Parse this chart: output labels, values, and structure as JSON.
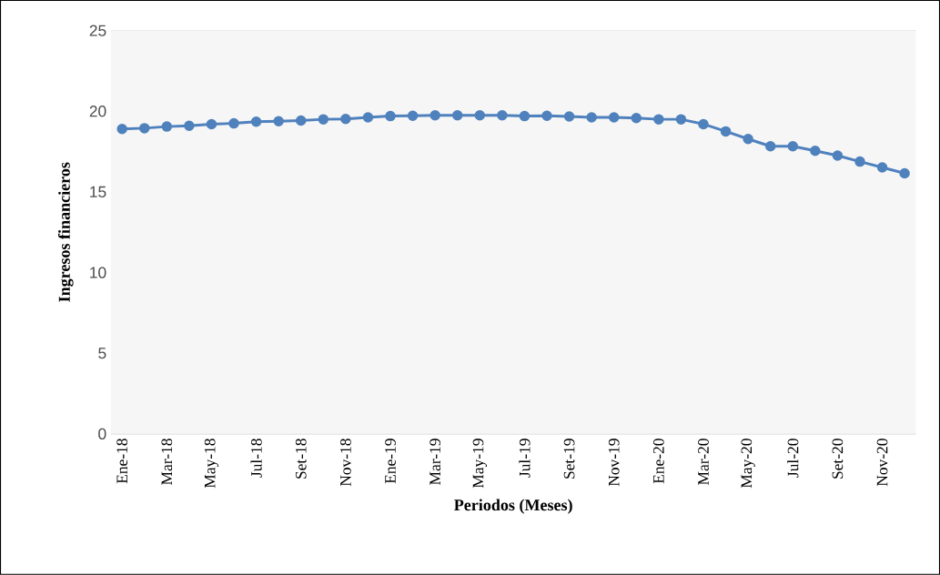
{
  "chart_data": {
    "type": "line",
    "xlabel": "Periodos (Meses)",
    "ylabel": "Ingresos financieros",
    "categories": [
      "Ene-18",
      null,
      "Mar-18",
      null,
      "May-18",
      null,
      "Jul-18",
      null,
      "Set-18",
      null,
      "Nov-18",
      null,
      "Ene-19",
      null,
      "Mar-19",
      null,
      "May-19",
      null,
      "Jul-19",
      null,
      "Set-19",
      null,
      "Nov-19",
      null,
      "Ene-20",
      null,
      "Mar-20",
      null,
      "May-20",
      null,
      "Jul-20",
      null,
      "Set-20",
      null,
      "Nov-20",
      null
    ],
    "series": [
      {
        "color": "#4f81bd",
        "values": [
          18.9,
          18.95,
          19.05,
          19.1,
          19.2,
          19.25,
          19.35,
          19.38,
          19.42,
          19.5,
          19.52,
          19.62,
          19.7,
          19.72,
          19.75,
          19.75,
          19.75,
          19.75,
          19.7,
          19.72,
          19.68,
          19.62,
          19.62,
          19.58,
          19.5,
          19.5,
          19.2,
          18.75,
          18.28,
          17.83,
          17.83,
          17.55,
          17.25,
          16.88,
          16.52,
          16.15
        ]
      }
    ],
    "ylim": [
      0,
      25
    ],
    "yticks": [
      0,
      5,
      10,
      15,
      20,
      25
    ],
    "grid": "y",
    "marker": "circle",
    "line_style": "solid"
  }
}
